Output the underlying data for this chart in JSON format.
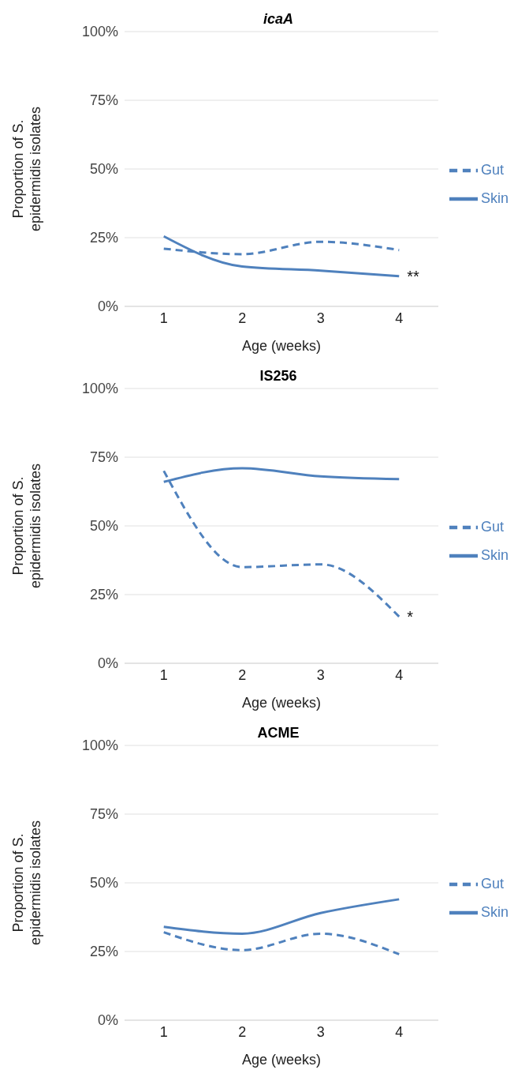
{
  "chart_data": [
    {
      "type": "line",
      "title": "icaA",
      "xlabel": "Age (weeks)",
      "ylabel": "Proportion of S. epidermidis isolates",
      "categories": [
        "1",
        "2",
        "3",
        "4"
      ],
      "series": [
        {
          "name": "Skin",
          "color": "#4f81bd",
          "values": [
            25.5,
            14.5,
            13,
            11
          ],
          "line_style": "solid"
        },
        {
          "name": "Gut",
          "color": "#4f81bd",
          "values": [
            21,
            19,
            23.5,
            20.5
          ],
          "line_style": "dashed"
        }
      ],
      "ylim": [
        0,
        100
      ],
      "yticks": [
        {
          "value": 0,
          "label": "0%"
        },
        {
          "value": 25,
          "label": "25%"
        },
        {
          "value": 50,
          "label": "50%"
        },
        {
          "value": 75,
          "label": "75%"
        },
        {
          "value": 100,
          "label": "100%"
        }
      ],
      "grid": "y",
      "legend": "right",
      "marker": "none",
      "annotations": [
        {
          "text": "**",
          "x": "4",
          "y": 11
        }
      ]
    },
    {
      "type": "line",
      "title": "IS256",
      "xlabel": "Age (weeks)",
      "ylabel": "Proportion of S. epidermidis isolates",
      "categories": [
        "1",
        "2",
        "3",
        "4"
      ],
      "series": [
        {
          "name": "Skin",
          "color": "#4f81bd",
          "values": [
            66,
            71,
            68,
            67
          ],
          "line_style": "solid"
        },
        {
          "name": "Gut",
          "color": "#4f81bd",
          "values": [
            70,
            35,
            36,
            17
          ],
          "line_style": "dashed"
        }
      ],
      "ylim": [
        0,
        100
      ],
      "yticks": [
        {
          "value": 0,
          "label": "0%"
        },
        {
          "value": 25,
          "label": "25%"
        },
        {
          "value": 50,
          "label": "50%"
        },
        {
          "value": 75,
          "label": "75%"
        },
        {
          "value": 100,
          "label": "100%"
        }
      ],
      "grid": "y",
      "legend": "right",
      "marker": "none",
      "annotations": [
        {
          "text": "*",
          "x": "4",
          "y": 17
        }
      ]
    },
    {
      "type": "line",
      "title": "ACME",
      "xlabel": "Age (weeks)",
      "ylabel": "Proportion of S. epidermidis isolates",
      "categories": [
        "1",
        "2",
        "3",
        "4"
      ],
      "series": [
        {
          "name": "Skin",
          "color": "#4f81bd",
          "values": [
            34,
            31.5,
            39,
            44
          ],
          "line_style": "solid"
        },
        {
          "name": "Gut",
          "color": "#4f81bd",
          "values": [
            32,
            25.5,
            31.5,
            24
          ],
          "line_style": "dashed"
        }
      ],
      "ylim": [
        0,
        100
      ],
      "yticks": [
        {
          "value": 0,
          "label": "0%"
        },
        {
          "value": 25,
          "label": "25%"
        },
        {
          "value": 50,
          "label": "50%"
        },
        {
          "value": 75,
          "label": "75%"
        },
        {
          "value": 100,
          "label": "100%"
        }
      ],
      "grid": "y",
      "legend": "right",
      "marker": "none"
    }
  ]
}
